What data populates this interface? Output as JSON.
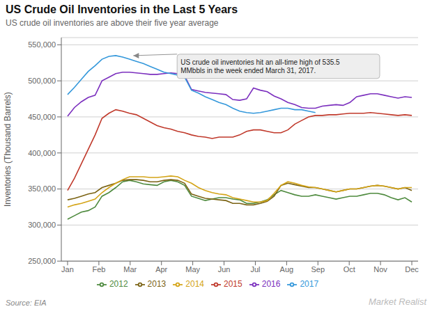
{
  "chart_data": {
    "type": "line",
    "title": "US Crude Oil Inventories in the Last 5 Years",
    "subtitle": "US crude oil inventories are above their five year average",
    "ylabel": "Inventories (Thousand Barrels)",
    "source": "Source: EIA",
    "watermark": "Market Realist",
    "annotations": [
      {
        "text": "US crude oil inventories hit an all-time high of 535.5\nMMbbls in the week ended March 31, 2017.",
        "x": 2.1,
        "y": 535000,
        "text_x": 3.5,
        "text_y": 537000
      }
    ],
    "x": [
      0,
      0.22,
      0.44,
      0.66,
      0.88,
      1.1,
      1.32,
      1.54,
      1.76,
      1.98,
      2.2,
      2.42,
      2.64,
      2.86,
      3.08,
      3.3,
      3.52,
      3.74,
      3.96,
      4.18,
      4.4,
      4.62,
      4.84,
      5.06,
      5.28,
      5.5,
      5.72,
      5.94,
      6.16,
      6.38,
      6.6,
      6.82,
      7.04,
      7.26,
      7.48,
      7.7,
      7.92,
      8.14,
      8.36,
      8.58,
      8.8,
      9.02,
      9.24,
      9.46,
      9.68,
      9.9,
      10.12,
      10.34,
      10.56,
      10.78,
      11
    ],
    "xlim": [
      -0.2,
      11.2
    ],
    "xticks": [
      {
        "value": 0,
        "label": "Jan"
      },
      {
        "value": 1,
        "label": "Feb"
      },
      {
        "value": 2,
        "label": "Mar"
      },
      {
        "value": 3,
        "label": "Apr"
      },
      {
        "value": 4,
        "label": "May"
      },
      {
        "value": 5,
        "label": "Jun"
      },
      {
        "value": 6,
        "label": "Jul"
      },
      {
        "value": 7,
        "label": "Aug"
      },
      {
        "value": 8,
        "label": "Sep"
      },
      {
        "value": 9,
        "label": "Oct"
      },
      {
        "value": 10,
        "label": "Nov"
      },
      {
        "value": 11,
        "label": "Dec"
      }
    ],
    "ylim": [
      250000,
      560000
    ],
    "yticks": [
      {
        "value": 250000,
        "label": "250,000"
      },
      {
        "value": 300000,
        "label": "300,000"
      },
      {
        "value": 350000,
        "label": "350,000"
      },
      {
        "value": 400000,
        "label": "400,000"
      },
      {
        "value": 450000,
        "label": "450,000"
      },
      {
        "value": 500000,
        "label": "500,000"
      },
      {
        "value": 550000,
        "label": "550,000"
      }
    ],
    "grid": true,
    "series": [
      {
        "name": "2012",
        "color": "#4e8a3e",
        "values": [
          308000,
          313000,
          318000,
          320000,
          325000,
          340000,
          345000,
          352000,
          360000,
          362000,
          360000,
          357000,
          356000,
          355000,
          360000,
          362000,
          360000,
          355000,
          340000,
          337000,
          334000,
          336000,
          338000,
          338000,
          336000,
          335000,
          330000,
          330000,
          332000,
          335000,
          342000,
          348000,
          345000,
          342000,
          340000,
          340000,
          342000,
          340000,
          338000,
          336000,
          338000,
          340000,
          340000,
          342000,
          344000,
          344000,
          342000,
          338000,
          335000,
          338000,
          332000
        ]
      },
      {
        "name": "2013",
        "color": "#7b6314",
        "values": [
          335000,
          337000,
          340000,
          343000,
          345000,
          352000,
          355000,
          358000,
          362000,
          363000,
          363000,
          362000,
          360000,
          360000,
          362000,
          363000,
          362000,
          358000,
          343000,
          340000,
          337000,
          336000,
          335000,
          334000,
          330000,
          330000,
          328000,
          328000,
          330000,
          333000,
          340000,
          355000,
          358000,
          356000,
          354000,
          352000,
          352000,
          350000,
          348000,
          346000,
          348000,
          350000,
          350000,
          352000,
          354000,
          355000,
          354000,
          352000,
          350000,
          352000,
          348000
        ]
      },
      {
        "name": "2014",
        "color": "#d4a417",
        "values": [
          325000,
          328000,
          330000,
          333000,
          336000,
          345000,
          352000,
          358000,
          363000,
          367000,
          367000,
          367000,
          366000,
          366000,
          367000,
          368000,
          367000,
          362000,
          358000,
          352000,
          348000,
          345000,
          343000,
          342000,
          338000,
          336000,
          334000,
          332000,
          332000,
          334000,
          344000,
          355000,
          360000,
          358000,
          355000,
          353000,
          352000,
          350000,
          348000,
          346000,
          348000,
          350000,
          350000,
          352000,
          354000,
          355000,
          354000,
          352000,
          350000,
          352000,
          352000
        ]
      },
      {
        "name": "2015",
        "color": "#c0392b",
        "values": [
          348000,
          365000,
          385000,
          405000,
          425000,
          448000,
          455000,
          460000,
          458000,
          455000,
          453000,
          448000,
          443000,
          438000,
          435000,
          433000,
          430000,
          428000,
          425000,
          423000,
          422000,
          420000,
          422000,
          422000,
          422000,
          425000,
          430000,
          432000,
          432000,
          430000,
          428000,
          428000,
          432000,
          440000,
          445000,
          450000,
          452000,
          452000,
          453000,
          453000,
          454000,
          455000,
          455000,
          455000,
          456000,
          455000,
          454000,
          453000,
          452000,
          453000,
          452000
        ]
      },
      {
        "name": "2016",
        "color": "#7b2fbe",
        "values": [
          451000,
          463000,
          471000,
          477000,
          480000,
          500000,
          505000,
          510000,
          512000,
          512000,
          511000,
          510000,
          509000,
          509000,
          510000,
          511000,
          510000,
          507000,
          488000,
          486000,
          484000,
          483000,
          482000,
          481000,
          474000,
          473000,
          475000,
          490000,
          487000,
          485000,
          479000,
          475000,
          470000,
          467000,
          463000,
          462000,
          462000,
          465000,
          466000,
          467000,
          466000,
          470000,
          478000,
          480000,
          482000,
          482000,
          480000,
          478000,
          476000,
          478000,
          477000
        ]
      },
      {
        "name": "2017",
        "color": "#3498db",
        "values": [
          481000,
          491000,
          502000,
          513000,
          521000,
          530000,
          534000,
          535000,
          533000,
          530000,
          527000,
          524000,
          520000,
          516000,
          512000,
          510000,
          508000,
          505000,
          487000,
          483000,
          478000,
          474000,
          470000,
          467000,
          462000,
          458000,
          456000,
          455000,
          456000,
          458000,
          460000,
          462000,
          462000,
          460000,
          460000,
          458000,
          456000,
          null,
          null,
          null,
          null,
          null,
          null,
          null,
          null,
          null,
          null,
          null,
          null,
          null,
          null
        ]
      }
    ]
  }
}
